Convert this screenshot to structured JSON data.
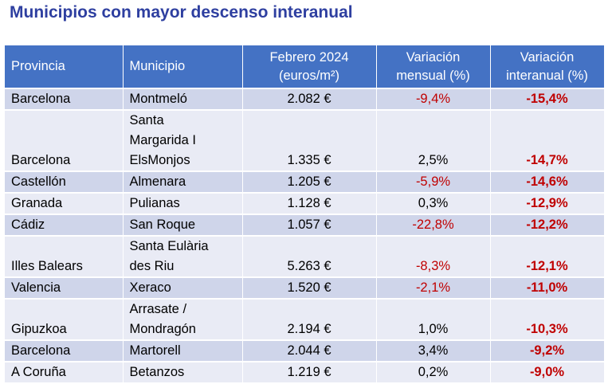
{
  "title": "Municipios con mayor descenso interanual",
  "headers": {
    "provincia": "Provincia",
    "municipio": "Municipio",
    "precio": "Febrero 2024\n(euros/m²)",
    "mensual": "Variación\nmensual (%)",
    "interanual": "Variación\ninteranual (%)"
  },
  "rows": [
    {
      "provincia": "Barcelona",
      "municipio": "Montmeló",
      "precio": "2.082 €",
      "mensual": "-9,4%",
      "interanual": "-15,4%"
    },
    {
      "provincia": "Barcelona",
      "municipio": "Santa\nMargarida I\nElsMonjos",
      "precio": "1.335 €",
      "mensual": "2,5%",
      "interanual": "-14,7%"
    },
    {
      "provincia": "Castellón",
      "municipio": "Almenara",
      "precio": "1.205 €",
      "mensual": "-5,9%",
      "interanual": "-14,6%"
    },
    {
      "provincia": "Granada",
      "municipio": "Pulianas",
      "precio": "1.128 €",
      "mensual": "0,3%",
      "interanual": "-12,9%"
    },
    {
      "provincia": "Cádiz",
      "municipio": "San Roque",
      "precio": "1.057 €",
      "mensual": "-22,8%",
      "interanual": "-12,2%"
    },
    {
      "provincia": "Illes Balears",
      "municipio": "Santa Eulària\ndes Riu",
      "precio": "5.263 €",
      "mensual": "-8,3%",
      "interanual": "-12,1%"
    },
    {
      "provincia": "Valencia",
      "municipio": "Xeraco",
      "precio": "1.520 €",
      "mensual": "-2,1%",
      "interanual": "-11,0%"
    },
    {
      "provincia": "Gipuzkoa",
      "municipio": "Arrasate /\nMondragón",
      "precio": "2.194 €",
      "mensual": "1,0%",
      "interanual": "-10,3%"
    },
    {
      "provincia": "Barcelona",
      "municipio": "Martorell",
      "precio": "2.044 €",
      "mensual": "3,4%",
      "interanual": "-9,2%"
    },
    {
      "provincia": "A Coruña",
      "municipio": "Betanzos",
      "precio": "1.219 €",
      "mensual": "0,2%",
      "interanual": "-9,0%"
    }
  ],
  "colors": {
    "title": "#2e3fa0",
    "header_bg": "#4472c4",
    "row_odd": "#cfd5ea",
    "row_even": "#e9ebf5",
    "negative": "#c00000"
  }
}
